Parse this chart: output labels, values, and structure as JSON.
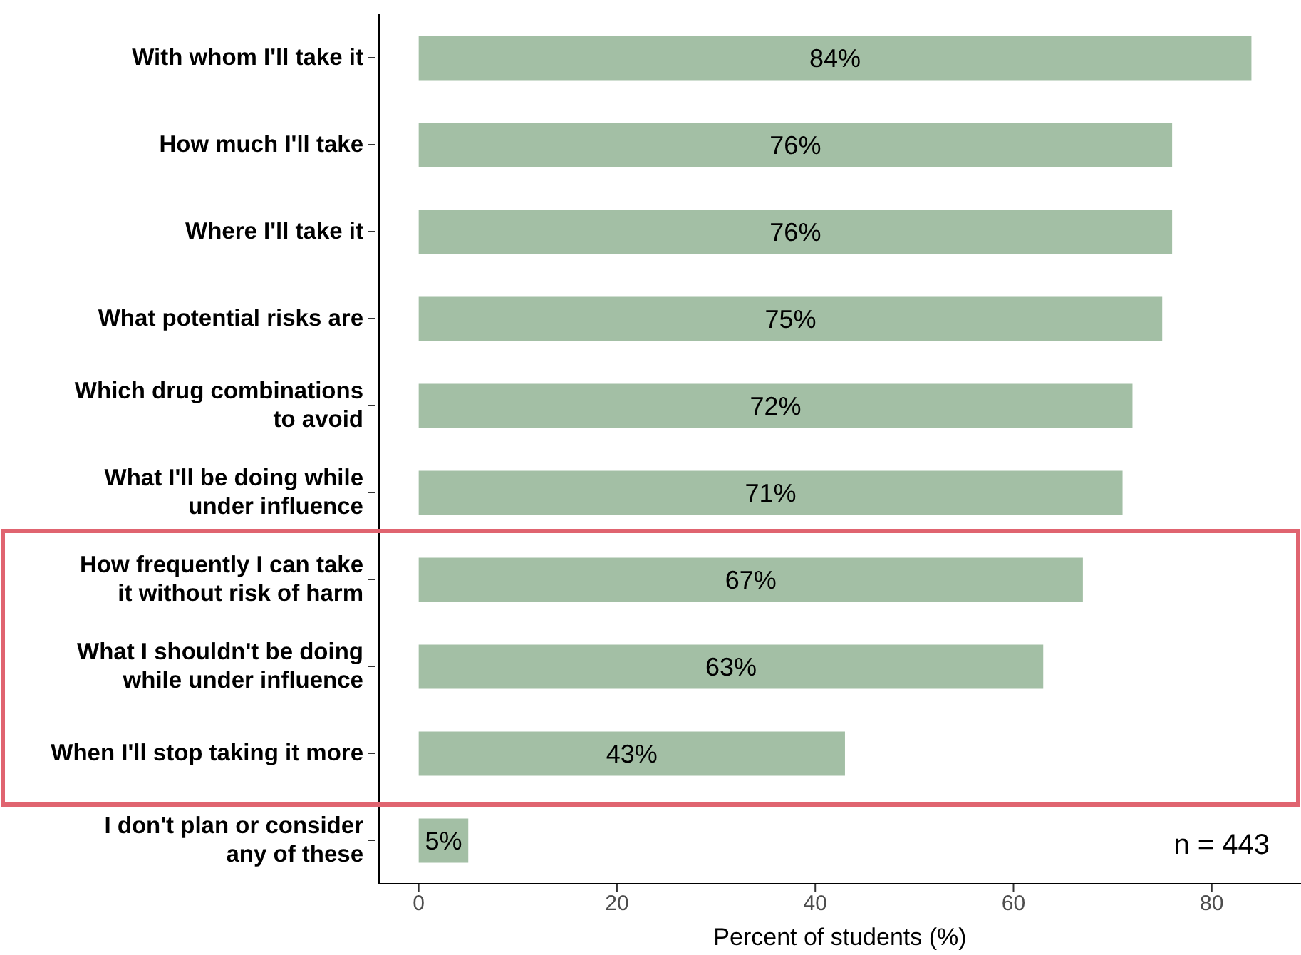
{
  "chart_data": {
    "type": "bar",
    "orientation": "horizontal",
    "xlabel": "Percent of students (%)",
    "categories": [
      "With whom I'll take it",
      "How much I'll take",
      "Where I'll take it",
      "What potential risks are",
      "Which drug combinations\nto avoid",
      "What I'll be doing while\nunder influence",
      "How frequently I can take\nit without risk of harm",
      "What I shouldn't be doing\nwhile under influence",
      "When I'll stop taking it more",
      "I don't plan or consider\nany of these"
    ],
    "values": [
      84,
      76,
      76,
      75,
      72,
      71,
      67,
      63,
      43,
      5
    ],
    "value_labels": [
      "84%",
      "76%",
      "76%",
      "75%",
      "72%",
      "71%",
      "67%",
      "63%",
      "43%",
      "5%"
    ],
    "color": "#a3bfa5",
    "xlim": [
      -4,
      89
    ],
    "xticks": [
      0,
      20,
      40,
      60,
      80
    ],
    "annotations": [
      "n = 443"
    ]
  }
}
